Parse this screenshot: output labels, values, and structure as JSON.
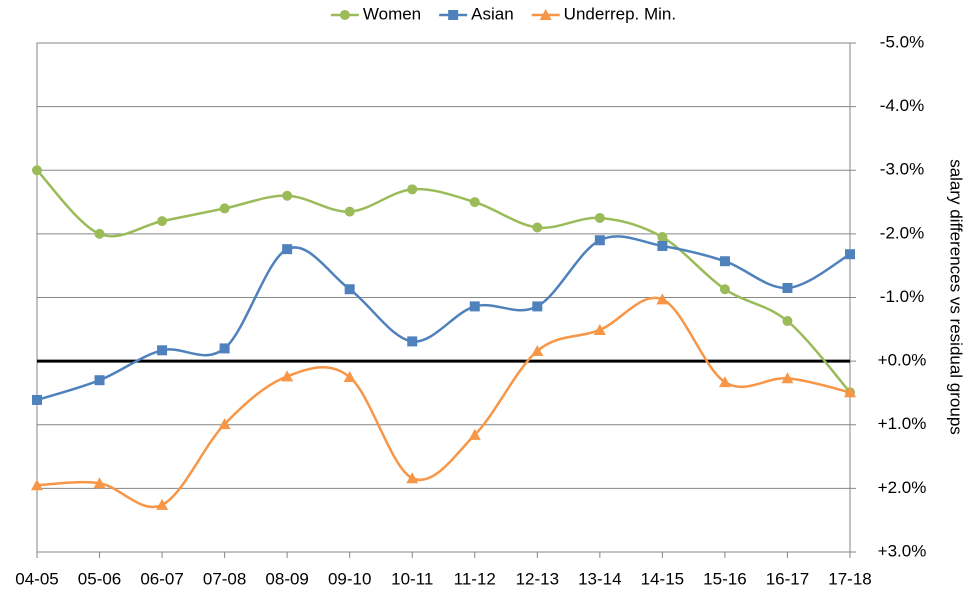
{
  "chart_data": {
    "type": "line",
    "smooth": true,
    "categories": [
      "04-05",
      "05-06",
      "06-07",
      "07-08",
      "08-09",
      "09-10",
      "10-11",
      "11-12",
      "12-13",
      "13-14",
      "14-15",
      "15-16",
      "16-17",
      "17-18"
    ],
    "series": [
      {
        "name": "Women",
        "color": "#9bbb59",
        "marker": "circle",
        "values": [
          -3.0,
          -2.0,
          -2.2,
          -2.4,
          -2.6,
          -2.35,
          -2.7,
          -2.5,
          -2.1,
          -2.25,
          -1.95,
          -1.13,
          -0.63,
          0.49
        ]
      },
      {
        "name": "Asian",
        "color": "#4f81bd",
        "marker": "square",
        "values": [
          0.61,
          0.3,
          -0.17,
          -0.2,
          -1.76,
          -1.13,
          -0.31,
          -0.86,
          -0.86,
          -1.9,
          -1.81,
          -1.57,
          -1.15,
          -1.68
        ]
      },
      {
        "name": "Underrep. Min.",
        "color": "#f79646",
        "marker": "triangle",
        "values": [
          1.95,
          1.92,
          2.26,
          0.99,
          0.24,
          0.25,
          1.84,
          1.16,
          -0.16,
          -0.49,
          -0.97,
          0.33,
          0.27,
          0.49
        ]
      }
    ],
    "y_axis_side": "right",
    "ylabel": "salary differences  vs  residual groups",
    "ylim": [
      3,
      -5
    ],
    "yticks": [
      {
        "value": -5,
        "label": "-5.0%"
      },
      {
        "value": -4,
        "label": "-4.0%"
      },
      {
        "value": -3,
        "label": "-3.0%"
      },
      {
        "value": -2,
        "label": "-2.0%"
      },
      {
        "value": -1,
        "label": "-1.0%"
      },
      {
        "value": 0,
        "label": "+0.0%"
      },
      {
        "value": 1,
        "label": "+1.0%"
      },
      {
        "value": 2,
        "label": "+2.0%"
      },
      {
        "value": 3,
        "label": "+3.0%"
      }
    ],
    "grid": true,
    "zero_line": true,
    "legend": "top"
  }
}
